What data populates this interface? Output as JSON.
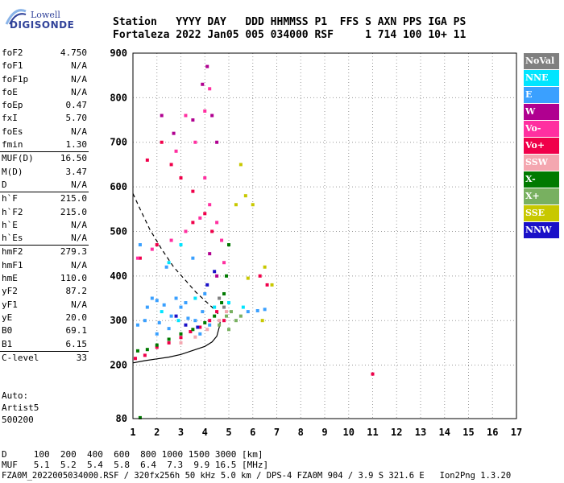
{
  "logo": {
    "brand": "Lowell",
    "name": "DIGISONDE"
  },
  "header": {
    "line1": "Station   YYYY DAY   DDD HHMMSS P1  FFS S AXN PPS IGA PS",
    "line2": "Fortaleza 2022 Jan05 005 034000 RSF     1 714 100 10+ 11"
  },
  "params": [
    {
      "name": "foF2",
      "value": "4.750"
    },
    {
      "name": "foF1",
      "value": "N/A"
    },
    {
      "name": "foF1p",
      "value": "N/A"
    },
    {
      "name": "foE",
      "value": "N/A"
    },
    {
      "name": "foEp",
      "value": "0.47"
    },
    {
      "name": "fxI",
      "value": "5.70"
    },
    {
      "name": "foEs",
      "value": "N/A"
    },
    {
      "name": "fmin",
      "value": "1.30"
    },
    {
      "name": "MUF(D)",
      "value": "16.50"
    },
    {
      "name": "M(D)",
      "value": "3.47"
    },
    {
      "name": "D",
      "value": "N/A"
    },
    {
      "name": "h`F",
      "value": "215.0"
    },
    {
      "name": "h`F2",
      "value": "215.0"
    },
    {
      "name": "h`E",
      "value": "N/A"
    },
    {
      "name": "h`Es",
      "value": "N/A"
    },
    {
      "name": "hmF2",
      "value": "279.3"
    },
    {
      "name": "hmF1",
      "value": "N/A"
    },
    {
      "name": "hmE",
      "value": "110.0"
    },
    {
      "name": "yF2",
      "value": "87.2"
    },
    {
      "name": "yF1",
      "value": "N/A"
    },
    {
      "name": "yE",
      "value": "20.0"
    },
    {
      "name": "B0",
      "value": "69.1"
    },
    {
      "name": "B1",
      "value": "6.15"
    },
    {
      "name": "C-level",
      "value": "33"
    }
  ],
  "auto": {
    "line1": "Auto:",
    "line2": "Artist5",
    "line3": "500200"
  },
  "legend": [
    {
      "label": "NoVal",
      "color": "#808080"
    },
    {
      "label": "NNE",
      "color": "#00e5ff"
    },
    {
      "label": "E",
      "color": "#3aa0ff"
    },
    {
      "label": "W",
      "color": "#b00090"
    },
    {
      "label": "Vo-",
      "color": "#ff2fa0"
    },
    {
      "label": "Vo+",
      "color": "#f0004a"
    },
    {
      "label": "SSW",
      "color": "#f4a7b0"
    },
    {
      "label": "X-",
      "color": "#007a00"
    },
    {
      "label": "X+",
      "color": "#78b060"
    },
    {
      "label": "SSE",
      "color": "#c8c800"
    },
    {
      "label": "NNW",
      "color": "#1a10c8"
    }
  ],
  "bottom": {
    "line1": "D     100  200  400  600  800 1000 1500 3000 [km]",
    "line2": "MUF   5.1  5.2  5.4  5.8  6.4  7.3  9.9 16.5 [MHz]"
  },
  "footer": "FZA0M_2022005034000.RSF / 320fx256h 50 kHz 5.0 km / DPS-4 FZA0M 904 / 3.9 S 321.6 E   Ion2Png 1.3.20",
  "chart_data": {
    "type": "scatter",
    "xlim": [
      1,
      17
    ],
    "ylim": [
      80,
      900
    ],
    "x_ticks": [
      1,
      2,
      3,
      4,
      5,
      6,
      7,
      8,
      9,
      10,
      11,
      12,
      13,
      14,
      15,
      16,
      17
    ],
    "y_ticks": [
      80,
      200,
      300,
      400,
      500,
      600,
      700,
      800,
      900
    ],
    "grid": "dotted",
    "frequency_trace_solid": [
      [
        1.0,
        205
      ],
      [
        1.5,
        210
      ],
      [
        2,
        214
      ],
      [
        2.5,
        218
      ],
      [
        3,
        224
      ],
      [
        3.5,
        233
      ],
      [
        4,
        242
      ],
      [
        4.3,
        252
      ],
      [
        4.5,
        265
      ],
      [
        4.6,
        285
      ],
      [
        4.65,
        300
      ]
    ],
    "frequency_trace_dashed": [
      [
        1.0,
        585
      ],
      [
        1.3,
        550
      ],
      [
        1.7,
        505
      ],
      [
        2.2,
        460
      ],
      [
        2.7,
        420
      ],
      [
        3.2,
        390
      ],
      [
        3.6,
        365
      ],
      [
        4.0,
        345
      ],
      [
        4.3,
        330
      ],
      [
        4.55,
        315
      ]
    ],
    "series": [
      {
        "name": "E",
        "color": "#3aa0ff",
        "points": [
          [
            1.2,
            290
          ],
          [
            1.5,
            300
          ],
          [
            1.8,
            350
          ],
          [
            2.0,
            345
          ],
          [
            2.3,
            335
          ],
          [
            2.6,
            310
          ],
          [
            3.0,
            330
          ],
          [
            3.3,
            305
          ],
          [
            3.6,
            300
          ],
          [
            3.9,
            320
          ],
          [
            4.2,
            290
          ],
          [
            2.1,
            295
          ],
          [
            2.5,
            282
          ],
          [
            2.8,
            350
          ],
          [
            3.2,
            340
          ],
          [
            1.6,
            330
          ],
          [
            6.2,
            322
          ],
          [
            6.5,
            325
          ],
          [
            5.8,
            320
          ],
          [
            2.4,
            420
          ],
          [
            3.5,
            440
          ],
          [
            1.3,
            470
          ],
          [
            4.0,
            360
          ],
          [
            2.0,
            270
          ],
          [
            3.8,
            270
          ]
        ]
      },
      {
        "name": "Vo+",
        "color": "#f0004a",
        "points": [
          [
            1.1,
            215
          ],
          [
            1.5,
            222
          ],
          [
            2.0,
            240
          ],
          [
            2.5,
            250
          ],
          [
            3.0,
            262
          ],
          [
            3.4,
            275
          ],
          [
            3.8,
            285
          ],
          [
            4.2,
            300
          ],
          [
            4.5,
            320
          ],
          [
            4.8,
            300
          ],
          [
            1.6,
            660
          ],
          [
            2.2,
            700
          ],
          [
            2.6,
            650
          ],
          [
            3.0,
            620
          ],
          [
            3.5,
            590
          ],
          [
            4.0,
            540
          ],
          [
            4.3,
            500
          ],
          [
            1.3,
            440
          ],
          [
            2.0,
            470
          ],
          [
            3.5,
            520
          ],
          [
            6.3,
            400
          ],
          [
            6.6,
            380
          ],
          [
            11.0,
            180
          ]
        ]
      },
      {
        "name": "Vo-",
        "color": "#ff2fa0",
        "points": [
          [
            1.2,
            440
          ],
          [
            1.8,
            460
          ],
          [
            2.6,
            480
          ],
          [
            3.2,
            500
          ],
          [
            3.8,
            530
          ],
          [
            4.2,
            560
          ],
          [
            4.5,
            520
          ],
          [
            4.7,
            480
          ],
          [
            4.8,
            430
          ],
          [
            4.0,
            620
          ],
          [
            3.6,
            700
          ],
          [
            4.0,
            770
          ],
          [
            4.2,
            820
          ],
          [
            3.2,
            760
          ],
          [
            2.8,
            680
          ]
        ]
      },
      {
        "name": "X-",
        "color": "#007a00",
        "points": [
          [
            1.2,
            232
          ],
          [
            1.6,
            235
          ],
          [
            2.0,
            245
          ],
          [
            2.5,
            258
          ],
          [
            3.0,
            270
          ],
          [
            3.5,
            280
          ],
          [
            4.0,
            295
          ],
          [
            4.4,
            310
          ],
          [
            4.7,
            340
          ],
          [
            4.9,
            400
          ],
          [
            5.0,
            470
          ],
          [
            4.8,
            360
          ],
          [
            1.3,
            82
          ]
        ]
      },
      {
        "name": "X+",
        "color": "#78b060",
        "points": [
          [
            4.9,
            310
          ],
          [
            5.1,
            320
          ],
          [
            5.3,
            300
          ],
          [
            4.6,
            290
          ],
          [
            5.0,
            280
          ],
          [
            5.5,
            310
          ]
        ]
      },
      {
        "name": "SSE",
        "color": "#c8c800",
        "points": [
          [
            5.5,
            650
          ],
          [
            5.7,
            580
          ],
          [
            6.0,
            560
          ],
          [
            5.3,
            560
          ],
          [
            6.5,
            420
          ],
          [
            6.8,
            380
          ],
          [
            6.4,
            300
          ],
          [
            5.8,
            395
          ]
        ]
      },
      {
        "name": "W",
        "color": "#b00090",
        "points": [
          [
            3.5,
            750
          ],
          [
            3.9,
            830
          ],
          [
            4.1,
            870
          ],
          [
            4.3,
            760
          ],
          [
            4.5,
            700
          ],
          [
            2.2,
            760
          ],
          [
            2.7,
            720
          ],
          [
            4.2,
            450
          ],
          [
            4.5,
            400
          ]
        ]
      },
      {
        "name": "NNE",
        "color": "#00e5ff",
        "points": [
          [
            2.5,
            430
          ],
          [
            3.0,
            470
          ],
          [
            2.2,
            320
          ],
          [
            3.6,
            350
          ],
          [
            4.4,
            330
          ],
          [
            5.0,
            340
          ],
          [
            5.6,
            330
          ],
          [
            2.9,
            300
          ]
        ]
      },
      {
        "name": "SSW",
        "color": "#f4a7b0",
        "points": [
          [
            3.0,
            250
          ],
          [
            3.6,
            263
          ],
          [
            4.1,
            280
          ],
          [
            4.6,
            300
          ],
          [
            4.9,
            320
          ]
        ]
      },
      {
        "name": "NNW",
        "color": "#1a10c8",
        "points": [
          [
            3.2,
            290
          ],
          [
            3.7,
            285
          ],
          [
            4.1,
            380
          ],
          [
            4.4,
            410
          ],
          [
            2.8,
            310
          ]
        ]
      },
      {
        "name": "NoVal",
        "color": "#808080",
        "points": [
          [
            4.8,
            330
          ],
          [
            4.6,
            350
          ]
        ]
      }
    ]
  }
}
